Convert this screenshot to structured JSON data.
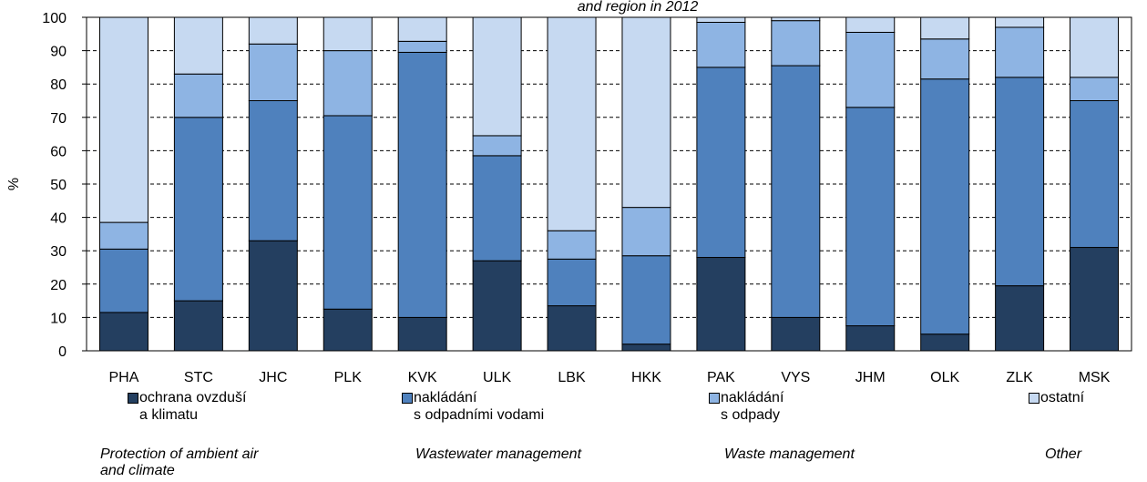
{
  "chart_data": {
    "type": "stacked-bar",
    "title": "and region  in 2012",
    "y_label": "%",
    "categories": [
      "PHA",
      "STC",
      "JHC",
      "PLK",
      "KVK",
      "ULK",
      "LBK",
      "HKK",
      "PAK",
      "VYS",
      "JHM",
      "OLK",
      "ZLK",
      "MSK"
    ],
    "series": [
      {
        "name": "ochrana ovzduší\na klimatu",
        "name_en": "Protection of ambient air\nand  climate",
        "color": "#243f60",
        "values": [
          11.5,
          15,
          33,
          12.5,
          10,
          27,
          13.5,
          2,
          28,
          10,
          7.5,
          5,
          19.5,
          31
        ]
      },
      {
        "name": "nakládání\ns odpadními vodami",
        "name_en": "Wastewater management",
        "color": "#4f81bd",
        "values": [
          19,
          55,
          42,
          58,
          79.5,
          31.5,
          14,
          26.5,
          57,
          75.5,
          65.5,
          76.5,
          62.5,
          44
        ]
      },
      {
        "name": "nakládání\ns odpady",
        "name_en": "Waste management",
        "color": "#8eb4e3",
        "values": [
          8,
          13,
          17,
          19.5,
          3.3,
          6,
          8.5,
          14.5,
          13.5,
          13.5,
          22.5,
          12,
          15,
          7
        ]
      },
      {
        "name": "ostatní",
        "name_en": "Other",
        "color": "#c6d9f1",
        "values": [
          61.5,
          17,
          8,
          10,
          7.2,
          35.5,
          64,
          57,
          1.5,
          1,
          4.5,
          6.5,
          3,
          18
        ]
      }
    ],
    "ylim": [
      0,
      100
    ],
    "yticks": [
      0,
      10,
      20,
      30,
      40,
      50,
      60,
      70,
      80,
      90,
      100
    ],
    "grid": true
  }
}
